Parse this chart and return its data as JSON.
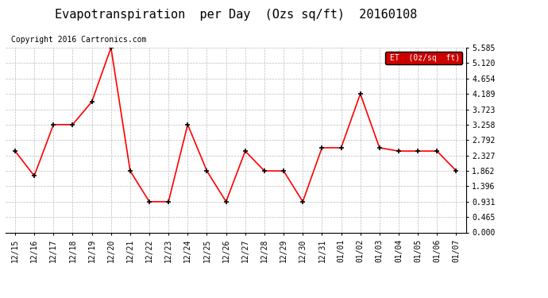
{
  "title": "Evapotranspiration  per Day  (Ozs sq/ft)  20160108",
  "copyright_text": "Copyright 2016 Cartronics.com",
  "legend_label": "ET  (0z/sq  ft)",
  "dates": [
    "12/15",
    "12/16",
    "12/17",
    "12/18",
    "12/19",
    "12/20",
    "12/21",
    "12/22",
    "12/23",
    "12/24",
    "12/25",
    "12/26",
    "12/27",
    "12/28",
    "12/29",
    "12/30",
    "12/31",
    "01/01",
    "01/02",
    "01/03",
    "01/04",
    "01/05",
    "01/06",
    "01/07"
  ],
  "et_values": [
    2.46,
    1.71,
    3.26,
    3.26,
    3.95,
    5.585,
    1.86,
    0.93,
    0.93,
    3.26,
    1.86,
    0.93,
    2.46,
    1.86,
    1.86,
    0.93,
    2.56,
    2.56,
    4.189,
    2.56,
    2.46,
    2.46,
    2.46,
    1.862
  ],
  "line_color": "#ff0000",
  "marker": "+",
  "marker_size": 5,
  "marker_linewidth": 1.2,
  "line_width": 1.2,
  "ylim": [
    0.0,
    5.585
  ],
  "yticks": [
    0.0,
    0.465,
    0.931,
    1.396,
    1.862,
    2.327,
    2.792,
    3.258,
    3.723,
    4.189,
    4.654,
    5.12,
    5.585
  ],
  "grid_color": "#bbbbbb",
  "bg_color": "#ffffff",
  "legend_bg": "#cc0000",
  "legend_text_color": "#ffffff",
  "title_fontsize": 11,
  "tick_fontsize": 7,
  "copyright_fontsize": 7
}
